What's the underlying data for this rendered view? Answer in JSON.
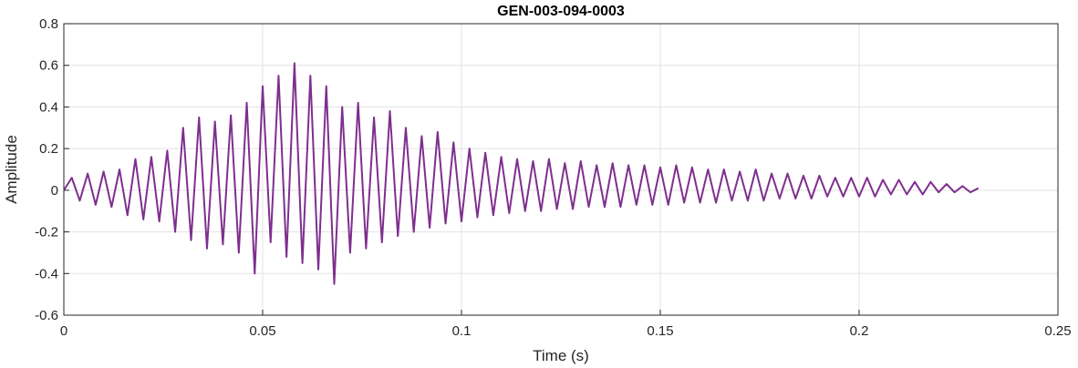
{
  "chart_data": {
    "type": "line",
    "title": "GEN-003-094-0003",
    "xlabel": "Time (s)",
    "ylabel": "Amplitude",
    "xlim": [
      0,
      0.25
    ],
    "ylim": [
      -0.6,
      0.8
    ],
    "xticks": [
      0,
      0.05,
      0.1,
      0.15,
      0.2,
      0.25
    ],
    "xtick_labels": [
      "0",
      "0.05",
      "0.1",
      "0.15",
      "0.2",
      "0.25"
    ],
    "yticks": [
      -0.6,
      -0.4,
      -0.2,
      0,
      0.2,
      0.4,
      0.6,
      0.8
    ],
    "ytick_labels": [
      "-0.6",
      "-0.4",
      "-0.2",
      "0",
      "0.2",
      "0.4",
      "0.6",
      "0.8"
    ],
    "grid": true,
    "series": [
      {
        "color": "#7E2F8E",
        "x": [
          0,
          0.002,
          0.004,
          0.006,
          0.008,
          0.01,
          0.012,
          0.014,
          0.016,
          0.018,
          0.02,
          0.022,
          0.024,
          0.026,
          0.028,
          0.03,
          0.032,
          0.034,
          0.036,
          0.038,
          0.04,
          0.042,
          0.044,
          0.046,
          0.048,
          0.05,
          0.052,
          0.054,
          0.056,
          0.058,
          0.06,
          0.062,
          0.064,
          0.066,
          0.068,
          0.07,
          0.072,
          0.074,
          0.076,
          0.078,
          0.08,
          0.082,
          0.084,
          0.086,
          0.088,
          0.09,
          0.092,
          0.094,
          0.096,
          0.098,
          0.1,
          0.102,
          0.104,
          0.106,
          0.108,
          0.11,
          0.112,
          0.114,
          0.116,
          0.118,
          0.12,
          0.122,
          0.124,
          0.126,
          0.128,
          0.13,
          0.132,
          0.134,
          0.136,
          0.138,
          0.14,
          0.142,
          0.144,
          0.146,
          0.148,
          0.15,
          0.152,
          0.154,
          0.156,
          0.158,
          0.16,
          0.162,
          0.164,
          0.166,
          0.168,
          0.17,
          0.172,
          0.174,
          0.176,
          0.178,
          0.18,
          0.182,
          0.184,
          0.186,
          0.188,
          0.19,
          0.192,
          0.194,
          0.196,
          0.198,
          0.2,
          0.202,
          0.204,
          0.206,
          0.208,
          0.21,
          0.212,
          0.214,
          0.216,
          0.218,
          0.22,
          0.222,
          0.224,
          0.226,
          0.228,
          0.23
        ],
        "y": [
          0,
          0.06,
          -0.05,
          0.08,
          -0.07,
          0.09,
          -0.08,
          0.1,
          -0.12,
          0.15,
          -0.14,
          0.16,
          -0.15,
          0.19,
          -0.2,
          0.3,
          -0.24,
          0.35,
          -0.28,
          0.33,
          -0.26,
          0.36,
          -0.3,
          0.42,
          -0.4,
          0.5,
          -0.25,
          0.55,
          -0.32,
          0.61,
          -0.35,
          0.55,
          -0.38,
          0.5,
          -0.45,
          0.4,
          -0.3,
          0.42,
          -0.28,
          0.35,
          -0.25,
          0.38,
          -0.22,
          0.3,
          -0.2,
          0.26,
          -0.18,
          0.28,
          -0.16,
          0.23,
          -0.15,
          0.2,
          -0.13,
          0.18,
          -0.12,
          0.16,
          -0.11,
          0.15,
          -0.1,
          0.14,
          -0.1,
          0.15,
          -0.09,
          0.13,
          -0.09,
          0.14,
          -0.08,
          0.12,
          -0.08,
          0.13,
          -0.08,
          0.12,
          -0.07,
          0.12,
          -0.07,
          0.11,
          -0.07,
          0.12,
          -0.06,
          0.11,
          -0.06,
          0.1,
          -0.06,
          0.1,
          -0.05,
          0.09,
          -0.05,
          0.1,
          -0.05,
          0.08,
          -0.04,
          0.08,
          -0.04,
          0.07,
          -0.04,
          0.07,
          -0.03,
          0.06,
          -0.03,
          0.06,
          -0.03,
          0.06,
          -0.03,
          0.05,
          -0.02,
          0.05,
          -0.02,
          0.04,
          -0.02,
          0.04,
          -0.01,
          0.03,
          -0.01,
          0.02,
          -0.01,
          0.01
        ]
      }
    ]
  }
}
